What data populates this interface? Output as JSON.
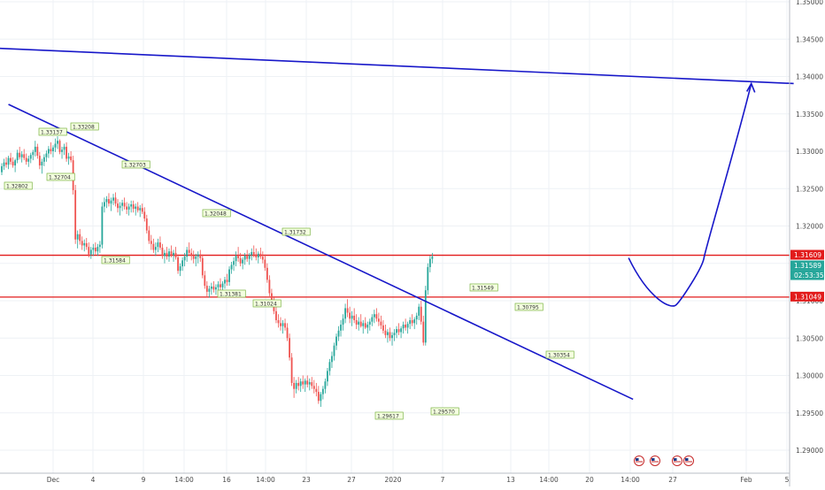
{
  "chart_data": {
    "type": "candlestick",
    "instrument_hint": "",
    "y_axis": {
      "ticks": [
        1.35,
        1.345,
        1.34,
        1.335,
        1.33,
        1.325,
        1.32,
        1.315,
        1.31,
        1.305,
        1.3,
        1.295,
        1.29
      ],
      "tick_labels": [
        "1.35000",
        "1.34500",
        "1.34000",
        "1.33500",
        "1.33000",
        "1.32500",
        "1.32000",
        "1.31500",
        "1.31000",
        "1.30500",
        "1.30000",
        "1.29500",
        "1.29000"
      ],
      "range": [
        1.2875,
        1.3505
      ]
    },
    "x_axis": {
      "tick_labels": [
        "Dec",
        "4",
        "9",
        "14:00",
        "16",
        "14:00",
        "23",
        "27",
        "2020",
        "7",
        "13",
        "14:00",
        "20",
        "14:00",
        "27",
        "Feb",
        "5"
      ]
    },
    "price_boxes": {
      "upper_level": "1.31609",
      "current_price": "1.31589",
      "countdown": "02:53:35",
      "lower_level": "1.31049"
    },
    "levels": {
      "upper": 1.31609,
      "lower": 1.31049
    },
    "pivot_labels": [
      "1.32802",
      "1.33137",
      "1.32704",
      "1.33208",
      "1.32703",
      "1.31584",
      "1.32048",
      "1.31381",
      "1.31024",
      "1.31732",
      "1.31549",
      "1.30795",
      "1.30354",
      "1.29617",
      "1.29570"
    ],
    "trendlines": [
      {
        "name": "long-downtrend",
        "from": {
          "bar": -3,
          "price": 1.3438
        },
        "to": {
          "bar": 355,
          "price": 1.33906
        }
      },
      {
        "name": "short-downtrend",
        "from": {
          "bar": 3,
          "price": 1.33627
        },
        "to": {
          "bar": 283,
          "price": 1.29681
        }
      }
    ],
    "projection_path": [
      {
        "bar": 281,
        "price": 1.31573
      },
      {
        "bar": 290,
        "price": 1.3102
      },
      {
        "bar": 300,
        "price": 1.3097
      },
      {
        "bar": 314,
        "price": 1.31573
      },
      {
        "bar": 327,
        "price": 1.331
      },
      {
        "bar": 336,
        "price": 1.33906
      }
    ],
    "candles": [
      [
        1.3272,
        1.3284,
        1.3268,
        1.328
      ],
      [
        1.328,
        1.329,
        1.3275,
        1.3285
      ],
      [
        1.3285,
        1.3292,
        1.3278,
        1.3282
      ],
      [
        1.3282,
        1.3294,
        1.3276,
        1.3291
      ],
      [
        1.3291,
        1.3298,
        1.3282,
        1.3286
      ],
      [
        1.3286,
        1.3292,
        1.3278,
        1.3281
      ],
      [
        1.3281,
        1.329,
        1.3272,
        1.3288
      ],
      [
        1.3288,
        1.3302,
        1.3284,
        1.3298
      ],
      [
        1.3298,
        1.3306,
        1.3289,
        1.3292
      ],
      [
        1.3292,
        1.33,
        1.3285,
        1.3296
      ],
      [
        1.3296,
        1.3303,
        1.3288,
        1.3291
      ],
      [
        1.3291,
        1.3297,
        1.3282,
        1.3286
      ],
      [
        1.3286,
        1.3294,
        1.3279,
        1.329
      ],
      [
        1.329,
        1.3298,
        1.3284,
        1.3295
      ],
      [
        1.3295,
        1.3302,
        1.3288,
        1.3299
      ],
      [
        1.3299,
        1.3314,
        1.3293,
        1.3306
      ],
      [
        1.3306,
        1.331,
        1.329,
        1.3294
      ],
      [
        1.3294,
        1.3299,
        1.3276,
        1.3281
      ],
      [
        1.3281,
        1.329,
        1.327,
        1.3286
      ],
      [
        1.3286,
        1.3296,
        1.328,
        1.3292
      ],
      [
        1.3292,
        1.3301,
        1.3286,
        1.3297
      ],
      [
        1.3297,
        1.3307,
        1.3291,
        1.3303
      ],
      [
        1.3303,
        1.3312,
        1.3296,
        1.33
      ],
      [
        1.33,
        1.3308,
        1.3292,
        1.3305
      ],
      [
        1.3305,
        1.3317,
        1.3299,
        1.331
      ],
      [
        1.331,
        1.332,
        1.3303,
        1.3314
      ],
      [
        1.3314,
        1.3316,
        1.3296,
        1.3299
      ],
      [
        1.3299,
        1.3306,
        1.329,
        1.3302
      ],
      [
        1.3302,
        1.331,
        1.3295,
        1.3306
      ],
      [
        1.3306,
        1.3312,
        1.3286,
        1.329
      ],
      [
        1.329,
        1.3298,
        1.3282,
        1.3293
      ],
      [
        1.3293,
        1.33,
        1.3285,
        1.3288
      ],
      [
        1.3288,
        1.3294,
        1.3242,
        1.3248
      ],
      [
        1.3248,
        1.3255,
        1.3176,
        1.3182
      ],
      [
        1.3182,
        1.3194,
        1.317,
        1.3189
      ],
      [
        1.3189,
        1.3196,
        1.3175,
        1.318
      ],
      [
        1.318,
        1.3186,
        1.3168,
        1.3174
      ],
      [
        1.3174,
        1.3182,
        1.3166,
        1.3177
      ],
      [
        1.3177,
        1.3184,
        1.3168,
        1.3172
      ],
      [
        1.3172,
        1.3178,
        1.3158,
        1.3162
      ],
      [
        1.3162,
        1.3172,
        1.3156,
        1.3168
      ],
      [
        1.3168,
        1.3176,
        1.316,
        1.3171
      ],
      [
        1.3171,
        1.3178,
        1.3162,
        1.3166
      ],
      [
        1.3166,
        1.3176,
        1.316,
        1.3172
      ],
      [
        1.3172,
        1.318,
        1.3164,
        1.3175
      ],
      [
        1.3175,
        1.3232,
        1.317,
        1.3226
      ],
      [
        1.3226,
        1.3238,
        1.3218,
        1.3232
      ],
      [
        1.3232,
        1.324,
        1.3224,
        1.3236
      ],
      [
        1.3236,
        1.3244,
        1.3226,
        1.323
      ],
      [
        1.323,
        1.3238,
        1.322,
        1.3234
      ],
      [
        1.3234,
        1.3243,
        1.3228,
        1.3238
      ],
      [
        1.3238,
        1.3245,
        1.3226,
        1.323
      ],
      [
        1.323,
        1.3236,
        1.3218,
        1.3224
      ],
      [
        1.3224,
        1.3232,
        1.3214,
        1.3227
      ],
      [
        1.3227,
        1.3235,
        1.322,
        1.3231
      ],
      [
        1.3231,
        1.3238,
        1.3222,
        1.3226
      ],
      [
        1.3226,
        1.3232,
        1.3216,
        1.3222
      ],
      [
        1.3222,
        1.323,
        1.3214,
        1.3226
      ],
      [
        1.3226,
        1.3234,
        1.3218,
        1.3229
      ],
      [
        1.3229,
        1.3234,
        1.3218,
        1.3223
      ],
      [
        1.3223,
        1.323,
        1.3214,
        1.3226
      ],
      [
        1.3226,
        1.3232,
        1.3218,
        1.3221
      ],
      [
        1.3221,
        1.3228,
        1.3212,
        1.3224
      ],
      [
        1.3224,
        1.323,
        1.3216,
        1.3219
      ],
      [
        1.3219,
        1.3225,
        1.3206,
        1.321
      ],
      [
        1.321,
        1.3215,
        1.319,
        1.3194
      ],
      [
        1.3194,
        1.32,
        1.3176,
        1.318
      ],
      [
        1.318,
        1.3188,
        1.3168,
        1.3176
      ],
      [
        1.3176,
        1.3183,
        1.3164,
        1.3168
      ],
      [
        1.3168,
        1.3178,
        1.316,
        1.3172
      ],
      [
        1.3172,
        1.3183,
        1.3165,
        1.3178
      ],
      [
        1.3178,
        1.3186,
        1.3168,
        1.3171
      ],
      [
        1.3171,
        1.3176,
        1.3156,
        1.316
      ],
      [
        1.316,
        1.3168,
        1.315,
        1.3164
      ],
      [
        1.3164,
        1.3172,
        1.3155,
        1.3159
      ],
      [
        1.3159,
        1.317,
        1.3152,
        1.3166
      ],
      [
        1.3166,
        1.3174,
        1.3158,
        1.3161
      ],
      [
        1.3161,
        1.3168,
        1.3152,
        1.3164
      ],
      [
        1.3164,
        1.3172,
        1.3155,
        1.3158
      ],
      [
        1.3158,
        1.3162,
        1.3136,
        1.314
      ],
      [
        1.314,
        1.315,
        1.3133,
        1.3146
      ],
      [
        1.3146,
        1.3158,
        1.314,
        1.3154
      ],
      [
        1.3154,
        1.3164,
        1.3146,
        1.3159
      ],
      [
        1.3159,
        1.3172,
        1.3152,
        1.3168
      ],
      [
        1.3168,
        1.3178,
        1.316,
        1.3164
      ],
      [
        1.3164,
        1.317,
        1.3154,
        1.316
      ],
      [
        1.316,
        1.3167,
        1.315,
        1.3156
      ],
      [
        1.3156,
        1.3163,
        1.3146,
        1.3159
      ],
      [
        1.3159,
        1.3166,
        1.315,
        1.3162
      ],
      [
        1.3162,
        1.3168,
        1.3152,
        1.3157
      ],
      [
        1.3157,
        1.3162,
        1.313,
        1.3134
      ],
      [
        1.3134,
        1.314,
        1.3116,
        1.312
      ],
      [
        1.312,
        1.3126,
        1.3104,
        1.3112
      ],
      [
        1.3112,
        1.312,
        1.3104,
        1.3116
      ],
      [
        1.3116,
        1.3124,
        1.3108,
        1.3119
      ],
      [
        1.3119,
        1.3126,
        1.3111,
        1.3115
      ],
      [
        1.3115,
        1.3122,
        1.3108,
        1.3118
      ],
      [
        1.3118,
        1.3126,
        1.311,
        1.3122
      ],
      [
        1.3122,
        1.313,
        1.3114,
        1.3118
      ],
      [
        1.3118,
        1.3126,
        1.311,
        1.3123
      ],
      [
        1.3123,
        1.3132,
        1.3116,
        1.3128
      ],
      [
        1.3128,
        1.3136,
        1.312,
        1.3125
      ],
      [
        1.3125,
        1.3146,
        1.312,
        1.3142
      ],
      [
        1.3142,
        1.3152,
        1.3136,
        1.3148
      ],
      [
        1.3148,
        1.3158,
        1.314,
        1.3153
      ],
      [
        1.3153,
        1.3166,
        1.3146,
        1.316
      ],
      [
        1.316,
        1.3172,
        1.3152,
        1.3157
      ],
      [
        1.3157,
        1.3164,
        1.3146,
        1.315
      ],
      [
        1.315,
        1.3158,
        1.3142,
        1.3155
      ],
      [
        1.3155,
        1.3164,
        1.3148,
        1.316
      ],
      [
        1.316,
        1.3168,
        1.3152,
        1.3156
      ],
      [
        1.3156,
        1.3164,
        1.3148,
        1.3161
      ],
      [
        1.3161,
        1.317,
        1.3154,
        1.3165
      ],
      [
        1.3165,
        1.3174,
        1.3158,
        1.3162
      ],
      [
        1.3162,
        1.317,
        1.3154,
        1.3158
      ],
      [
        1.3158,
        1.3166,
        1.315,
        1.3163
      ],
      [
        1.3163,
        1.3171,
        1.3156,
        1.3159
      ],
      [
        1.3159,
        1.3166,
        1.315,
        1.3155
      ],
      [
        1.3155,
        1.3162,
        1.314,
        1.3144
      ],
      [
        1.3144,
        1.315,
        1.3124,
        1.3128
      ],
      [
        1.3128,
        1.3134,
        1.3106,
        1.311
      ],
      [
        1.311,
        1.3116,
        1.3094,
        1.3098
      ],
      [
        1.3098,
        1.3104,
        1.3082,
        1.3086
      ],
      [
        1.3086,
        1.3092,
        1.307,
        1.3074
      ],
      [
        1.3074,
        1.3082,
        1.3064,
        1.307
      ],
      [
        1.307,
        1.3078,
        1.306,
        1.3066
      ],
      [
        1.3066,
        1.3074,
        1.3056,
        1.307
      ],
      [
        1.307,
        1.3076,
        1.306,
        1.3064
      ],
      [
        1.3064,
        1.307,
        1.3046,
        1.305
      ],
      [
        1.305,
        1.3056,
        1.302,
        1.3024
      ],
      [
        1.3024,
        1.303,
        1.2986,
        1.299
      ],
      [
        1.299,
        1.2998,
        1.297,
        1.2982
      ],
      [
        1.2982,
        1.2994,
        1.2976,
        1.299
      ],
      [
        1.299,
        1.2998,
        1.298,
        1.2986
      ],
      [
        1.2986,
        1.2996,
        1.2978,
        1.2992
      ],
      [
        1.2992,
        1.3,
        1.2982,
        1.2988
      ],
      [
        1.2988,
        1.2996,
        1.2978,
        1.2993
      ],
      [
        1.2993,
        1.3,
        1.2984,
        1.2988
      ],
      [
        1.2988,
        1.2996,
        1.298,
        1.2991
      ],
      [
        1.2991,
        1.2998,
        1.2982,
        1.2986
      ],
      [
        1.2986,
        1.2994,
        1.2976,
        1.2982
      ],
      [
        1.2982,
        1.299,
        1.2972,
        1.2978
      ],
      [
        1.2978,
        1.2986,
        1.2962,
        1.2966
      ],
      [
        1.2966,
        1.2978,
        1.2958,
        1.2975
      ],
      [
        1.2975,
        1.2986,
        1.2968,
        1.2982
      ],
      [
        1.2982,
        1.2996,
        1.2976,
        1.2992
      ],
      [
        1.2992,
        1.301,
        1.2986,
        1.3006
      ],
      [
        1.3006,
        1.3022,
        1.3,
        1.3018
      ],
      [
        1.3018,
        1.3032,
        1.301,
        1.3026
      ],
      [
        1.3026,
        1.3044,
        1.302,
        1.304
      ],
      [
        1.304,
        1.3056,
        1.3034,
        1.3052
      ],
      [
        1.3052,
        1.3066,
        1.3046,
        1.306
      ],
      [
        1.306,
        1.3074,
        1.3052,
        1.3068
      ],
      [
        1.3068,
        1.3082,
        1.306,
        1.3076
      ],
      [
        1.3076,
        1.3096,
        1.307,
        1.309
      ],
      [
        1.309,
        1.3102,
        1.3078,
        1.3084
      ],
      [
        1.3084,
        1.3092,
        1.307,
        1.3076
      ],
      [
        1.3076,
        1.3086,
        1.3066,
        1.308
      ],
      [
        1.308,
        1.309,
        1.307,
        1.3074
      ],
      [
        1.3074,
        1.3082,
        1.3062,
        1.3068
      ],
      [
        1.3068,
        1.3078,
        1.306,
        1.3072
      ],
      [
        1.3072,
        1.3082,
        1.3064,
        1.3066
      ],
      [
        1.3066,
        1.3074,
        1.3056,
        1.307
      ],
      [
        1.307,
        1.3078,
        1.3062,
        1.3064
      ],
      [
        1.3064,
        1.3072,
        1.3056,
        1.3068
      ],
      [
        1.3068,
        1.3076,
        1.306,
        1.3072
      ],
      [
        1.3072,
        1.3082,
        1.3066,
        1.3078
      ],
      [
        1.3078,
        1.3088,
        1.307,
        1.3082
      ],
      [
        1.3082,
        1.309,
        1.3072,
        1.3076
      ],
      [
        1.3076,
        1.3084,
        1.3066,
        1.3072
      ],
      [
        1.3072,
        1.308,
        1.3062,
        1.3067
      ],
      [
        1.3067,
        1.3074,
        1.3056,
        1.306
      ],
      [
        1.306,
        1.3068,
        1.305,
        1.3054
      ],
      [
        1.3054,
        1.3062,
        1.3044,
        1.3058
      ],
      [
        1.3058,
        1.3064,
        1.3046,
        1.305
      ],
      [
        1.305,
        1.3058,
        1.304,
        1.3054
      ],
      [
        1.3054,
        1.3062,
        1.3046,
        1.3057
      ],
      [
        1.3057,
        1.3066,
        1.305,
        1.3062
      ],
      [
        1.3062,
        1.307,
        1.3054,
        1.3058
      ],
      [
        1.3058,
        1.3066,
        1.305,
        1.3063
      ],
      [
        1.3063,
        1.3072,
        1.3056,
        1.3068
      ],
      [
        1.3068,
        1.3076,
        1.306,
        1.3064
      ],
      [
        1.3064,
        1.3072,
        1.3056,
        1.3069
      ],
      [
        1.3069,
        1.3078,
        1.3062,
        1.3074
      ],
      [
        1.3074,
        1.3082,
        1.3066,
        1.307
      ],
      [
        1.307,
        1.3078,
        1.3062,
        1.3075
      ],
      [
        1.3075,
        1.3084,
        1.3068,
        1.308
      ],
      [
        1.308,
        1.3096,
        1.3074,
        1.3092
      ],
      [
        1.3092,
        1.31,
        1.3068,
        1.3072
      ],
      [
        1.3072,
        1.308,
        1.304,
        1.3044
      ],
      [
        1.3044,
        1.312,
        1.304,
        1.3114
      ],
      [
        1.3114,
        1.315,
        1.3108,
        1.3145
      ],
      [
        1.3145,
        1.316,
        1.3138,
        1.3156
      ],
      [
        1.3156,
        1.3164,
        1.315,
        1.3159
      ]
    ]
  }
}
